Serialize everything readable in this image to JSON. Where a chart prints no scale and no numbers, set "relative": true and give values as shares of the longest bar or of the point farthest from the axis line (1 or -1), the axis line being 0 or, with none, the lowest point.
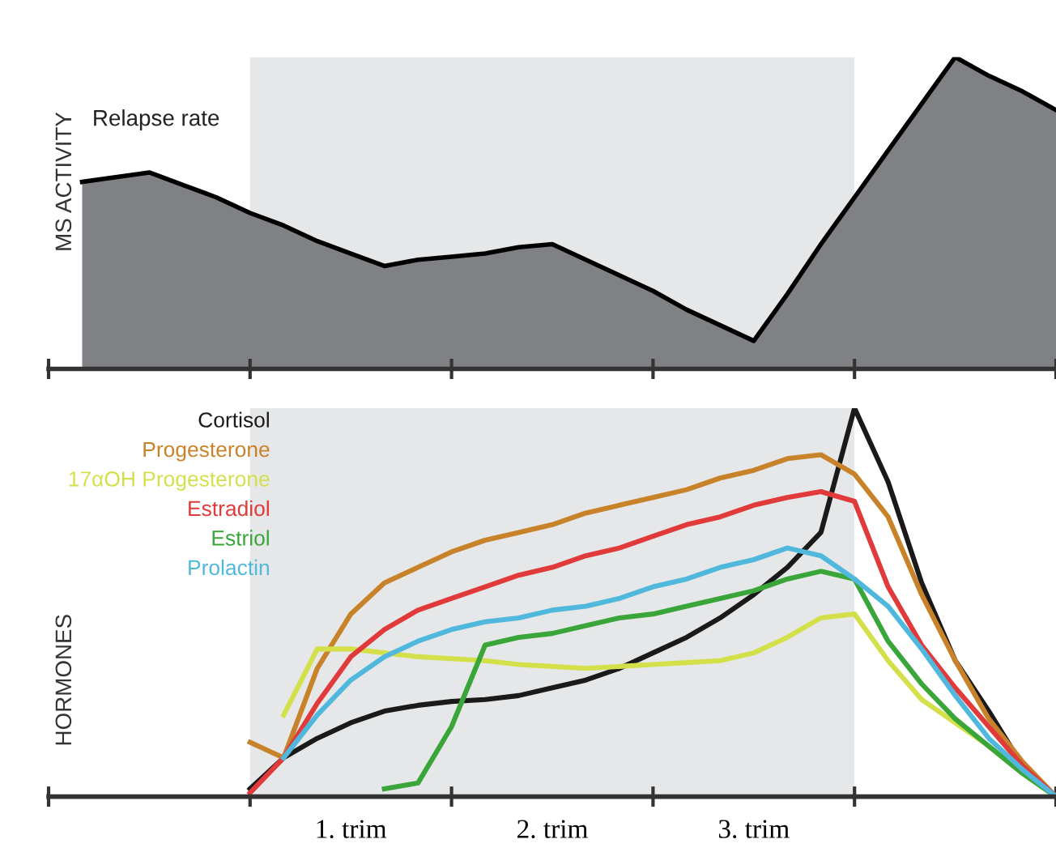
{
  "chart_data": [
    {
      "type": "area",
      "relative": true,
      "ylabel": "MS ACTIVITY",
      "annotations": [
        "Relapse rate"
      ],
      "categories": [
        null,
        null,
        null,
        null,
        null,
        null,
        null,
        null,
        null,
        null,
        null,
        null,
        null,
        null,
        null,
        null,
        null,
        null,
        null,
        null,
        null,
        null,
        null,
        null,
        null,
        null,
        null,
        null,
        null,
        null,
        null
      ],
      "series": [
        {
          "color": "#808184",
          "values": [
            null,
            0.6,
            0.615,
            0.63,
            0.59,
            0.55,
            0.5,
            0.46,
            0.41,
            0.37,
            0.33,
            0.35,
            0.36,
            0.37,
            0.39,
            0.4,
            0.35,
            0.3,
            0.25,
            0.19,
            0.14,
            0.09,
            0.24,
            0.4,
            0.55,
            0.7,
            0.85,
            1.0,
            0.94,
            0.89,
            0.83
          ]
        }
      ]
    },
    {
      "type": "line",
      "relative": true,
      "ylabel": "HORMONES",
      "legend": "top left",
      "categories": [
        null,
        null,
        null,
        null,
        null,
        null,
        null,
        null,
        null,
        "1. trim",
        null,
        null,
        null,
        null,
        null,
        "2. trim",
        null,
        null,
        null,
        null,
        null,
        "3. trim",
        null,
        null,
        null,
        null,
        null,
        null,
        null,
        null,
        null
      ],
      "series": [
        {
          "name": "Cortisol",
          "color": "#1a1a1a",
          "values": [
            null,
            null,
            null,
            null,
            null,
            null,
            0.02,
            0.1,
            0.15,
            0.19,
            0.22,
            0.235,
            0.245,
            0.25,
            0.26,
            0.28,
            0.3,
            0.33,
            0.37,
            0.41,
            0.46,
            0.52,
            0.59,
            0.68,
            1.0,
            0.81,
            0.55,
            0.35,
            0.22,
            0.08,
            0.0
          ]
        },
        {
          "name": "Progesterone",
          "color": "#c8832a",
          "values": [
            null,
            null,
            null,
            null,
            null,
            null,
            0.14,
            0.1,
            0.33,
            0.47,
            0.55,
            0.59,
            0.63,
            0.66,
            0.68,
            0.7,
            0.73,
            0.75,
            0.77,
            0.79,
            0.82,
            0.84,
            0.87,
            0.88,
            0.83,
            0.72,
            0.52,
            0.35,
            0.2,
            0.09,
            0.0
          ]
        },
        {
          "name": "17αOH Progesterone",
          "color": "#d4e04a",
          "values": [
            null,
            null,
            null,
            null,
            null,
            null,
            null,
            0.21,
            0.38,
            0.38,
            0.37,
            0.36,
            0.355,
            0.35,
            0.34,
            0.335,
            0.33,
            0.335,
            0.34,
            0.345,
            0.35,
            0.37,
            0.41,
            0.46,
            0.47,
            0.35,
            0.25,
            0.19,
            0.13,
            0.06,
            0.0
          ]
        },
        {
          "name": "Estradiol",
          "color": "#e03a3a",
          "values": [
            null,
            null,
            null,
            null,
            null,
            null,
            0.01,
            0.1,
            0.24,
            0.36,
            0.43,
            0.48,
            0.51,
            0.54,
            0.57,
            0.59,
            0.62,
            0.64,
            0.67,
            0.7,
            0.72,
            0.75,
            0.77,
            0.785,
            0.76,
            0.54,
            0.39,
            0.28,
            0.18,
            0.08,
            0.0
          ]
        },
        {
          "name": "Estriol",
          "color": "#3aa63a",
          "values": [
            null,
            null,
            null,
            null,
            null,
            null,
            null,
            null,
            null,
            null,
            0.02,
            0.035,
            0.18,
            0.39,
            0.41,
            0.42,
            0.44,
            0.46,
            0.47,
            0.49,
            0.51,
            0.53,
            0.56,
            0.58,
            0.56,
            0.4,
            0.29,
            0.2,
            0.13,
            0.06,
            0.0
          ]
        },
        {
          "name": "Prolactin",
          "color": "#4fb8dc",
          "values": [
            null,
            null,
            null,
            null,
            null,
            null,
            null,
            0.1,
            0.21,
            0.3,
            0.36,
            0.4,
            0.43,
            0.45,
            0.46,
            0.48,
            0.49,
            0.51,
            0.54,
            0.56,
            0.59,
            0.61,
            0.64,
            0.62,
            0.56,
            0.49,
            0.38,
            0.26,
            0.15,
            0.07,
            0.0
          ]
        }
      ]
    }
  ]
}
